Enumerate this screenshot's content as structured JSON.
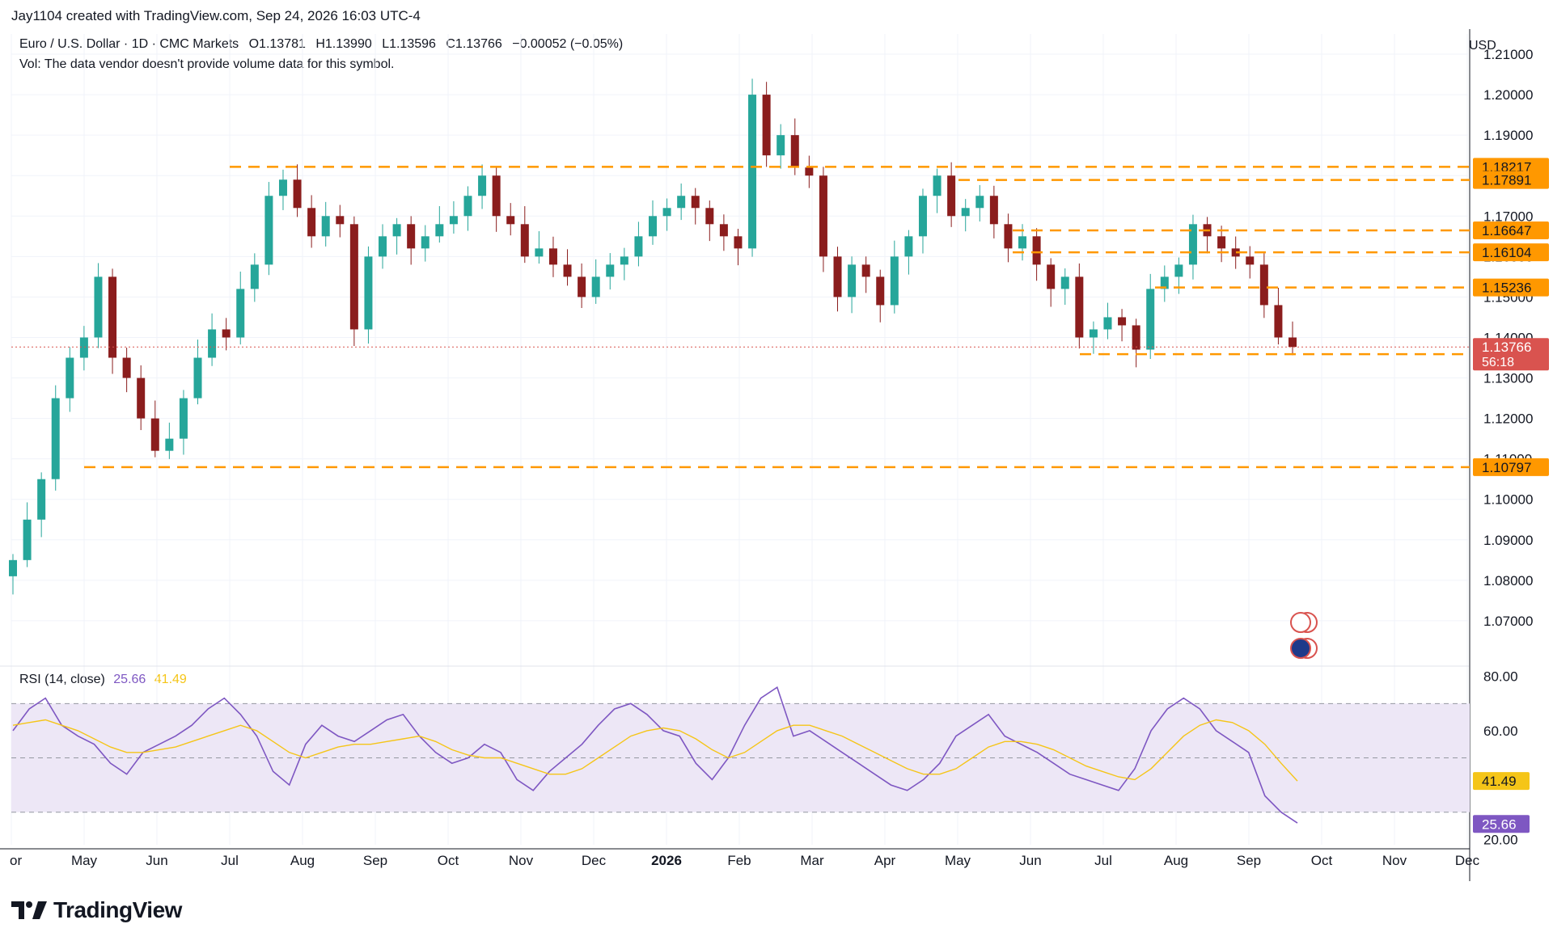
{
  "header": {
    "attribution": "Jay1104 created with TradingView.com, Sep 24, 2026 16:03 UTC-4"
  },
  "legend": {
    "symbol": "Euro / U.S. Dollar · 1D · CMC Markets",
    "open": "O1.13781",
    "high": "H1.13990",
    "low": "L1.13596",
    "close": "C1.13766",
    "change": "−0.00052 (−0.05%)",
    "volume_note": "Vol: The data vendor doesn't provide volume data for this symbol."
  },
  "rsi_legend": {
    "label": "RSI (14, close)",
    "rsi_value": "25.66",
    "ma_value": "41.49"
  },
  "price_axis": {
    "currency": "USD"
  },
  "current_price": {
    "price": "1.13766",
    "countdown": "56:18"
  },
  "brand": {
    "name": "TradingView"
  },
  "colors": {
    "up_candle": "#26a69a",
    "down_candle": "#8b1d1d",
    "level_line": "#ff9800",
    "rsi_line": "#7e57c2",
    "rsi_ma": "#f5c518",
    "rsi_band": "#ede7f6",
    "price_tag": "#d9534f"
  },
  "chart_data": [
    {
      "type": "candlestick",
      "title": "Euro / U.S. Dollar · 1D · CMC Markets",
      "ylim": [
        1.06,
        1.215
      ],
      "yticks": [
        "1.21000",
        "1.20000",
        "1.19000",
        "1.18000",
        "1.17000",
        "1.16000",
        "1.15000",
        "1.14000",
        "1.13000",
        "1.12000",
        "1.11000",
        "1.10000",
        "1.09000",
        "1.08000",
        "1.07000"
      ],
      "xticks": [
        "Apr",
        "May",
        "Jun",
        "Jul",
        "Aug",
        "Sep",
        "Oct",
        "Nov",
        "Dec",
        "2026",
        "Feb",
        "Mar",
        "Apr",
        "May",
        "Jun",
        "Jul",
        "Aug",
        "Sep",
        "Oct",
        "Nov",
        "Dec"
      ],
      "horizontal_levels": [
        {
          "value": 1.18217,
          "label": "1.18217",
          "from": "Jul"
        },
        {
          "value": 1.17891,
          "label": "1.17891",
          "from": "May"
        },
        {
          "value": 1.16647,
          "label": "1.16647",
          "from": "Jun"
        },
        {
          "value": 1.16104,
          "label": "1.16104",
          "from": "Jun"
        },
        {
          "value": 1.15236,
          "label": "1.15236",
          "from": "Aug"
        },
        {
          "value": 1.13588,
          "label": "1.13588",
          "from": "Jul"
        },
        {
          "value": 1.10797,
          "label": "1.10797",
          "from": "May"
        }
      ],
      "last_close": 1.13766,
      "close_path": [
        [
          "Apr",
          1.085
        ],
        [
          "Apr",
          1.095
        ],
        [
          "Apr",
          1.105
        ],
        [
          "Apr",
          1.125
        ],
        [
          "Apr",
          1.135
        ],
        [
          "Apr",
          1.14
        ],
        [
          "Apr",
          1.155
        ],
        [
          "May",
          1.135
        ],
        [
          "May",
          1.13
        ],
        [
          "May",
          1.12
        ],
        [
          "May",
          1.112
        ],
        [
          "May",
          1.115
        ],
        [
          "May",
          1.125
        ],
        [
          "Jun",
          1.135
        ],
        [
          "Jun",
          1.142
        ],
        [
          "Jun",
          1.14
        ],
        [
          "Jun",
          1.152
        ],
        [
          "Jun",
          1.158
        ],
        [
          "Jul",
          1.175
        ],
        [
          "Jul",
          1.179
        ],
        [
          "Jul",
          1.172
        ],
        [
          "Jul",
          1.165
        ],
        [
          "Jul",
          1.17
        ],
        [
          "Jul",
          1.168
        ],
        [
          "Aug",
          1.142
        ],
        [
          "Aug",
          1.16
        ],
        [
          "Aug",
          1.165
        ],
        [
          "Aug",
          1.168
        ],
        [
          "Aug",
          1.162
        ],
        [
          "Sep",
          1.165
        ],
        [
          "Sep",
          1.168
        ],
        [
          "Sep",
          1.17
        ],
        [
          "Sep",
          1.175
        ],
        [
          "Sep",
          1.18
        ],
        [
          "Oct",
          1.17
        ],
        [
          "Oct",
          1.168
        ],
        [
          "Oct",
          1.16
        ],
        [
          "Oct",
          1.162
        ],
        [
          "Oct",
          1.158
        ],
        [
          "Nov",
          1.155
        ],
        [
          "Nov",
          1.15
        ],
        [
          "Nov",
          1.155
        ],
        [
          "Nov",
          1.158
        ],
        [
          "Dec",
          1.16
        ],
        [
          "Dec",
          1.165
        ],
        [
          "Dec",
          1.17
        ],
        [
          "Dec",
          1.172
        ],
        [
          "Dec",
          1.175
        ],
        [
          "2026",
          1.172
        ],
        [
          "2026",
          1.168
        ],
        [
          "2026",
          1.165
        ],
        [
          "2026",
          1.162
        ],
        [
          "Feb",
          1.2
        ],
        [
          "Feb",
          1.185
        ],
        [
          "Feb",
          1.19
        ],
        [
          "Feb",
          1.182
        ],
        [
          "Feb",
          1.18
        ],
        [
          "Mar",
          1.16
        ],
        [
          "Mar",
          1.15
        ],
        [
          "Mar",
          1.158
        ],
        [
          "Mar",
          1.155
        ],
        [
          "Mar",
          1.148
        ],
        [
          "Apr",
          1.16
        ],
        [
          "Apr",
          1.165
        ],
        [
          "Apr",
          1.175
        ],
        [
          "Apr",
          1.18
        ],
        [
          "May",
          1.17
        ],
        [
          "May",
          1.172
        ],
        [
          "May",
          1.175
        ],
        [
          "May",
          1.168
        ],
        [
          "Jun",
          1.162
        ],
        [
          "Jun",
          1.165
        ],
        [
          "Jun",
          1.158
        ],
        [
          "Jun",
          1.152
        ],
        [
          "Jun",
          1.155
        ],
        [
          "Jul",
          1.14
        ],
        [
          "Jul",
          1.142
        ],
        [
          "Jul",
          1.145
        ],
        [
          "Jul",
          1.143
        ],
        [
          "Jul",
          1.137
        ],
        [
          "Aug",
          1.152
        ],
        [
          "Aug",
          1.155
        ],
        [
          "Aug",
          1.158
        ],
        [
          "Aug",
          1.168
        ],
        [
          "Aug",
          1.165
        ],
        [
          "Sep",
          1.162
        ],
        [
          "Sep",
          1.16
        ],
        [
          "Sep",
          1.158
        ],
        [
          "Sep",
          1.148
        ],
        [
          "Sep",
          1.14
        ],
        [
          "Sep",
          1.13766
        ]
      ]
    },
    {
      "type": "line",
      "title": "RSI (14, close)",
      "ylim": [
        18,
        82
      ],
      "yticks": [
        "80.00",
        "60.00",
        "20.00"
      ],
      "bands": [
        70,
        50,
        30
      ],
      "series": [
        {
          "name": "RSI (14, close)",
          "last": 25.66,
          "values": [
            60,
            68,
            72,
            62,
            58,
            55,
            48,
            44,
            52,
            55,
            58,
            62,
            68,
            72,
            66,
            58,
            45,
            40,
            55,
            62,
            58,
            56,
            60,
            64,
            66,
            58,
            52,
            48,
            50,
            55,
            52,
            42,
            38,
            45,
            50,
            55,
            62,
            68,
            70,
            66,
            60,
            58,
            48,
            42,
            50,
            62,
            72,
            76,
            58,
            60,
            56,
            52,
            48,
            44,
            40,
            38,
            42,
            48,
            58,
            62,
            66,
            58,
            55,
            52,
            48,
            44,
            42,
            40,
            38,
            46,
            60,
            68,
            72,
            68,
            60,
            56,
            52,
            36,
            30,
            26
          ]
        },
        {
          "name": "RSI MA",
          "last": 41.49,
          "values": [
            62,
            63,
            64,
            62,
            60,
            57,
            54,
            52,
            52,
            53,
            54,
            56,
            58,
            60,
            62,
            60,
            56,
            52,
            50,
            52,
            54,
            55,
            55,
            56,
            57,
            58,
            56,
            53,
            51,
            50,
            50,
            48,
            46,
            44,
            44,
            46,
            50,
            54,
            58,
            60,
            61,
            60,
            57,
            53,
            50,
            52,
            56,
            60,
            62,
            62,
            60,
            58,
            55,
            52,
            49,
            46,
            44,
            44,
            46,
            50,
            54,
            56,
            56,
            55,
            53,
            50,
            47,
            45,
            43,
            42,
            46,
            52,
            58,
            62,
            64,
            63,
            60,
            55,
            48,
            41.49
          ]
        }
      ]
    }
  ]
}
